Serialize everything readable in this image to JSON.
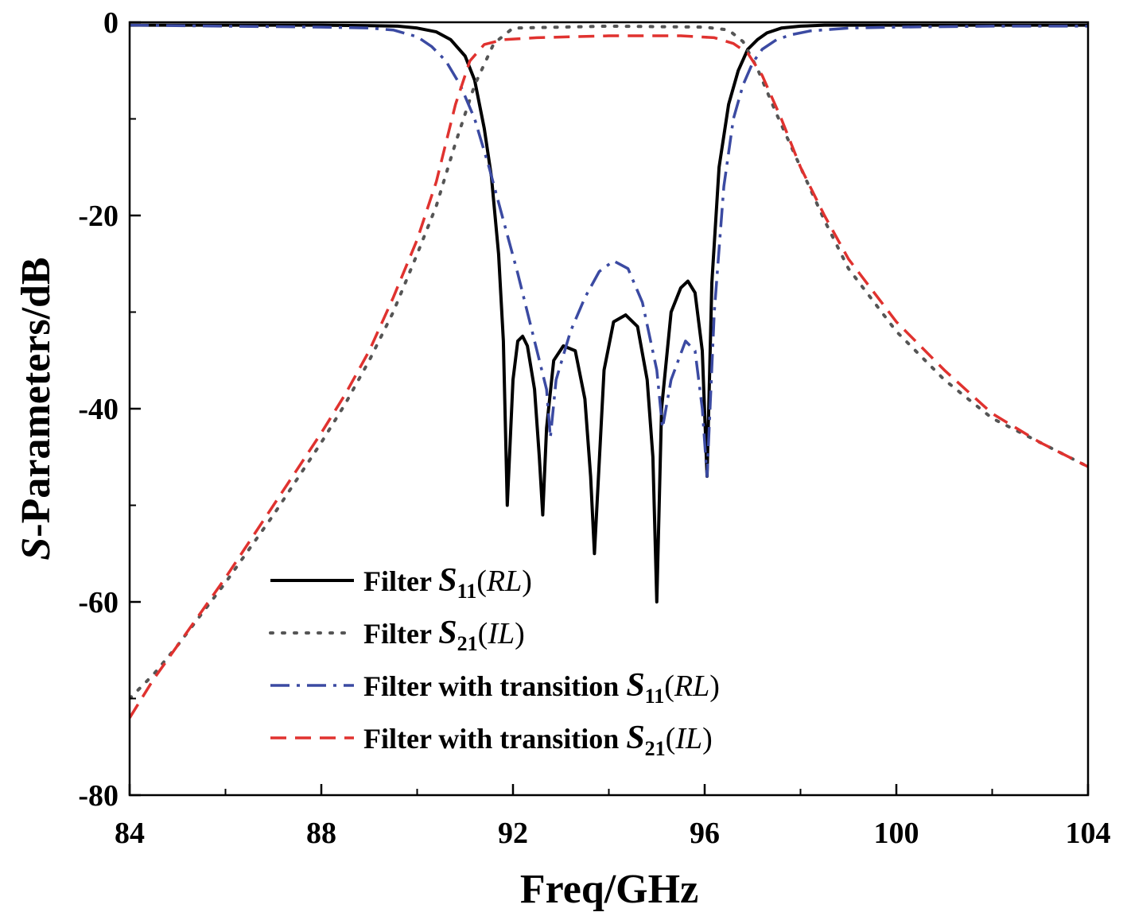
{
  "chart_data": {
    "type": "line",
    "xlabel": "Freq/GHz",
    "ylabel_italic": "S",
    "ylabel_rest": "-Parameters/dB",
    "xlim": [
      84,
      104
    ],
    "ylim": [
      -80,
      0
    ],
    "x_ticks": [
      84,
      88,
      92,
      96,
      100,
      104
    ],
    "y_ticks": [
      0,
      -20,
      -40,
      -60,
      -80
    ],
    "x_minor_step": 2,
    "y_minor_step": 10,
    "grid": false,
    "legend_position": "lower-center",
    "series": [
      {
        "name_prefix": "Filter ",
        "name_param": "S",
        "name_sub": "11",
        "name_suffix_italic": "RL",
        "color": "#000000",
        "style": "solid",
        "x": [
          84,
          86,
          88,
          89,
          89.6,
          90,
          90.4,
          90.7,
          91.0,
          91.2,
          91.4,
          91.55,
          91.7,
          91.8,
          91.88,
          92.0,
          92.1,
          92.2,
          92.3,
          92.45,
          92.55,
          92.62,
          92.7,
          92.85,
          93.05,
          93.3,
          93.5,
          93.62,
          93.7,
          93.9,
          94.1,
          94.35,
          94.6,
          94.8,
          94.92,
          95.0,
          95.1,
          95.3,
          95.5,
          95.65,
          95.8,
          95.95,
          96.05,
          96.15,
          96.3,
          96.5,
          96.7,
          96.9,
          97.1,
          97.3,
          97.6,
          98.0,
          98.5,
          99,
          100,
          102,
          104
        ],
        "y": [
          -0.3,
          -0.3,
          -0.3,
          -0.35,
          -0.4,
          -0.6,
          -1.0,
          -1.8,
          -3.5,
          -6,
          -11,
          -16,
          -24,
          -33,
          -50,
          -37,
          -33,
          -32.5,
          -33.5,
          -38,
          -45,
          -51,
          -42,
          -35,
          -33.5,
          -34,
          -39,
          -47,
          -55,
          -36,
          -31,
          -30.3,
          -31.5,
          -37,
          -45,
          -60,
          -40,
          -30,
          -27.5,
          -26.8,
          -28,
          -34,
          -47,
          -27,
          -15,
          -8.5,
          -5,
          -2.8,
          -1.8,
          -1.1,
          -0.6,
          -0.4,
          -0.3,
          -0.3,
          -0.3,
          -0.3,
          -0.3
        ]
      },
      {
        "name_prefix": "Filter ",
        "name_param": "S",
        "name_sub": "21",
        "name_suffix_italic": "IL",
        "color": "#555555",
        "style": "dotted",
        "x": [
          84,
          84.5,
          85,
          86,
          87,
          88,
          88.5,
          89,
          89.5,
          90,
          90.4,
          90.8,
          91.2,
          91.6,
          92,
          94,
          96,
          96.5,
          96.8,
          97.1,
          97.5,
          98,
          98.5,
          99,
          100,
          101,
          102,
          103,
          104
        ],
        "y": [
          -70,
          -67.5,
          -64.5,
          -58,
          -51,
          -43.5,
          -39.5,
          -35,
          -30,
          -24,
          -19,
          -12.5,
          -6.5,
          -2.2,
          -0.6,
          -0.4,
          -0.5,
          -0.8,
          -2.0,
          -4.8,
          -9.5,
          -15,
          -20.5,
          -25.5,
          -32,
          -37,
          -41,
          -43.5,
          -46
        ]
      },
      {
        "name_prefix": "Filter with transition ",
        "name_param": "S",
        "name_sub": "11",
        "name_suffix_italic": "RL",
        "color": "#3b4aa2",
        "style": "dashdot",
        "x": [
          84,
          86,
          88,
          89,
          89.5,
          90,
          90.3,
          90.6,
          90.9,
          91.2,
          91.5,
          91.8,
          92.1,
          92.4,
          92.7,
          92.78,
          92.9,
          93.2,
          93.5,
          93.8,
          94.1,
          94.4,
          94.7,
          95.0,
          95.12,
          95.3,
          95.6,
          95.8,
          95.95,
          96.05,
          96.2,
          96.4,
          96.6,
          96.8,
          97.0,
          97.2,
          97.5,
          97.8,
          98.2,
          99,
          100,
          102,
          104
        ],
        "y": [
          -0.3,
          -0.4,
          -0.5,
          -0.6,
          -0.8,
          -1.5,
          -2.5,
          -4.0,
          -6.5,
          -10,
          -15,
          -20.5,
          -26,
          -32,
          -38,
          -43,
          -37,
          -32,
          -28.5,
          -25.8,
          -24.7,
          -25.5,
          -29,
          -36,
          -42,
          -37,
          -33,
          -34,
          -40,
          -47,
          -30,
          -17,
          -10,
          -6.5,
          -4.2,
          -2.8,
          -1.8,
          -1.3,
          -0.9,
          -0.6,
          -0.5,
          -0.4,
          -0.4
        ]
      },
      {
        "name_prefix": "Filter with transition ",
        "name_param": "S",
        "name_sub": "21",
        "name_suffix_italic": "IL",
        "color": "#e0322f",
        "style": "dashed",
        "x": [
          84,
          84.5,
          85,
          86,
          87,
          88,
          88.5,
          89,
          89.5,
          90,
          90.4,
          90.8,
          91.1,
          91.4,
          91.8,
          92.5,
          94,
          95.5,
          96.2,
          96.6,
          96.9,
          97.2,
          97.6,
          98,
          98.5,
          99,
          100,
          101,
          102,
          103,
          104
        ],
        "y": [
          -72,
          -68,
          -64.5,
          -57.5,
          -50,
          -42.5,
          -38.5,
          -34,
          -28.5,
          -22.5,
          -16.5,
          -8.5,
          -4.0,
          -2.3,
          -1.8,
          -1.6,
          -1.4,
          -1.4,
          -1.6,
          -2.2,
          -3.2,
          -5.5,
          -10,
          -15,
          -20,
          -24.5,
          -31,
          -36,
          -40.5,
          -43.5,
          -46
        ]
      }
    ]
  }
}
